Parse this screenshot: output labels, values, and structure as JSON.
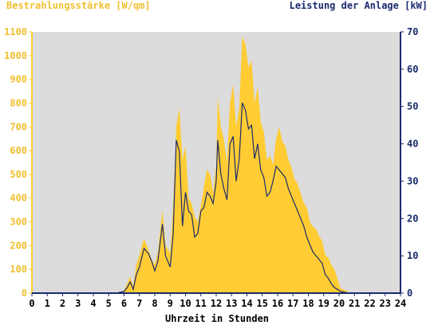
{
  "chart_data": {
    "type": "area",
    "left_axis_title": "Bestrahlungsstärke [W/qm]",
    "right_axis_title": "Leistung der Anlage [kW]",
    "x_axis_title": "Uhrzeit in Stunden",
    "x_ticks": [
      0,
      1,
      2,
      3,
      4,
      5,
      6,
      7,
      8,
      9,
      10,
      11,
      12,
      13,
      14,
      15,
      16,
      17,
      18,
      19,
      20,
      21,
      22,
      23,
      24
    ],
    "xlim": [
      0,
      24
    ],
    "y_left_ticks": [
      0,
      100,
      200,
      300,
      400,
      500,
      600,
      700,
      800,
      900,
      1000,
      1100
    ],
    "y_left_lim": [
      0,
      1100
    ],
    "y_right_ticks": [
      0,
      10,
      20,
      30,
      40,
      50,
      60,
      70
    ],
    "y_right_lim": [
      0,
      70
    ],
    "colors": {
      "background": "#dcdcdc",
      "irradiance_fill": "#ffcc33",
      "power_line": "#1a2b6e",
      "left_axis_text": "#f0c030",
      "right_axis_text": "#1a2b6e",
      "axis_line_left": "#ffcc33",
      "axis_line_right": "#1a2b6e"
    },
    "series": [
      {
        "name": "Bestrahlungsstärke [W/qm]",
        "axis": "left",
        "style": "area",
        "x": [
          0,
          5.5,
          6.0,
          6.2,
          6.4,
          6.6,
          6.8,
          7.0,
          7.3,
          7.6,
          7.8,
          8.0,
          8.2,
          8.5,
          8.7,
          9.0,
          9.2,
          9.4,
          9.6,
          9.8,
          10.0,
          10.2,
          10.4,
          10.6,
          10.8,
          11.0,
          11.2,
          11.4,
          11.6,
          11.8,
          12.0,
          12.1,
          12.3,
          12.5,
          12.7,
          12.9,
          13.1,
          13.3,
          13.5,
          13.7,
          13.9,
          14.1,
          14.3,
          14.5,
          14.7,
          14.9,
          15.1,
          15.3,
          15.5,
          15.7,
          15.9,
          16.1,
          16.3,
          16.5,
          16.7,
          16.9,
          17.1,
          17.3,
          17.5,
          17.7,
          17.9,
          18.1,
          18.3,
          18.5,
          18.7,
          18.9,
          19.1,
          19.3,
          19.5,
          19.7,
          19.9,
          20.1,
          20.3,
          20.5,
          20.7,
          24
        ],
        "y": [
          0,
          0,
          10,
          40,
          70,
          30,
          120,
          160,
          230,
          180,
          140,
          120,
          170,
          350,
          200,
          170,
          370,
          700,
          780,
          560,
          620,
          400,
          380,
          320,
          300,
          370,
          450,
          520,
          500,
          420,
          540,
          830,
          700,
          650,
          550,
          800,
          880,
          700,
          780,
          1080,
          1050,
          950,
          980,
          800,
          870,
          720,
          680,
          560,
          580,
          540,
          650,
          700,
          640,
          620,
          560,
          530,
          480,
          460,
          420,
          380,
          360,
          300,
          280,
          270,
          240,
          220,
          160,
          150,
          120,
          100,
          60,
          20,
          15,
          10,
          0,
          0
        ]
      },
      {
        "name": "Leistung der Anlage [kW]",
        "axis": "right",
        "style": "line",
        "x": [
          0,
          5.5,
          6.0,
          6.2,
          6.4,
          6.6,
          6.8,
          7.0,
          7.3,
          7.6,
          7.8,
          8.0,
          8.2,
          8.5,
          8.7,
          9.0,
          9.2,
          9.4,
          9.6,
          9.8,
          10.0,
          10.2,
          10.4,
          10.6,
          10.8,
          11.0,
          11.2,
          11.4,
          11.6,
          11.8,
          12.0,
          12.1,
          12.3,
          12.5,
          12.7,
          12.9,
          13.1,
          13.3,
          13.5,
          13.7,
          13.9,
          14.1,
          14.3,
          14.5,
          14.7,
          14.9,
          15.1,
          15.3,
          15.5,
          15.7,
          15.9,
          16.1,
          16.3,
          16.5,
          16.7,
          16.9,
          17.1,
          17.3,
          17.5,
          17.7,
          17.9,
          18.1,
          18.3,
          18.5,
          18.7,
          18.9,
          19.1,
          19.3,
          19.5,
          19.7,
          19.9,
          20.1,
          20.3,
          20.5,
          20.7,
          24
        ],
        "y": [
          0,
          0,
          0.5,
          1.5,
          3.0,
          1.0,
          5.0,
          7.0,
          12.0,
          10.5,
          8.5,
          6.0,
          8.5,
          18.5,
          10.0,
          7.0,
          16.0,
          41.0,
          38.0,
          18.0,
          27.0,
          22.0,
          21.0,
          15.0,
          16.0,
          22.0,
          23.0,
          27.0,
          26.0,
          24.0,
          30.0,
          41.0,
          32.0,
          28.0,
          25.0,
          40.0,
          42.0,
          30.0,
          36.0,
          51.0,
          49.0,
          44.0,
          45.0,
          36.0,
          40.0,
          33.0,
          31.0,
          26.0,
          27.0,
          30.0,
          34.0,
          33.0,
          32.0,
          31.0,
          28.0,
          26.0,
          24.0,
          22.0,
          20.0,
          18.0,
          15.0,
          13.0,
          11.0,
          10.0,
          9.0,
          8.0,
          5.0,
          4.0,
          2.5,
          1.5,
          1.0,
          0.5,
          0.3,
          0.1,
          0,
          0
        ]
      }
    ],
    "grid": false,
    "legend": "none"
  }
}
